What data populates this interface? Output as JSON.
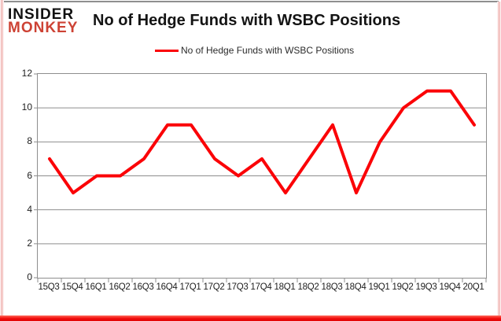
{
  "header": {
    "logo_line1": "INSIDER",
    "logo_line2": "MONKEY",
    "title": "No of Hedge Funds with WSBC Positions"
  },
  "legend": {
    "label": "No of Hedge Funds with WSBC Positions"
  },
  "colors": {
    "line": "#fb0207",
    "logo_red": "#cd4234",
    "logo_black": "#111111",
    "grid": "#8e8e8e",
    "axis_text": "#212121",
    "frame_bottom_red": "#f10c0c",
    "frame_side_pink": "#f0b4b2"
  },
  "chart_data": {
    "type": "line",
    "title": "No of Hedge Funds with WSBC Positions",
    "categories": [
      "15Q3",
      "15Q4",
      "16Q1",
      "16Q2",
      "16Q3",
      "16Q4",
      "17Q1",
      "17Q2",
      "17Q3",
      "17Q4",
      "18Q1",
      "18Q2",
      "18Q3",
      "18Q4",
      "19Q1",
      "19Q2",
      "19Q3",
      "19Q4",
      "20Q1"
    ],
    "series": [
      {
        "name": "No of Hedge Funds with WSBC Positions",
        "values": [
          7,
          5,
          6,
          6,
          7,
          9,
          9,
          7,
          6,
          7,
          5,
          7,
          9,
          5,
          8,
          10,
          11,
          11,
          9
        ]
      }
    ],
    "xlabel": "",
    "ylabel": "",
    "ylim": [
      0,
      12
    ],
    "yticks": [
      0,
      2,
      4,
      6,
      8,
      10,
      12
    ],
    "grid": true,
    "legend_position": "top-center"
  }
}
